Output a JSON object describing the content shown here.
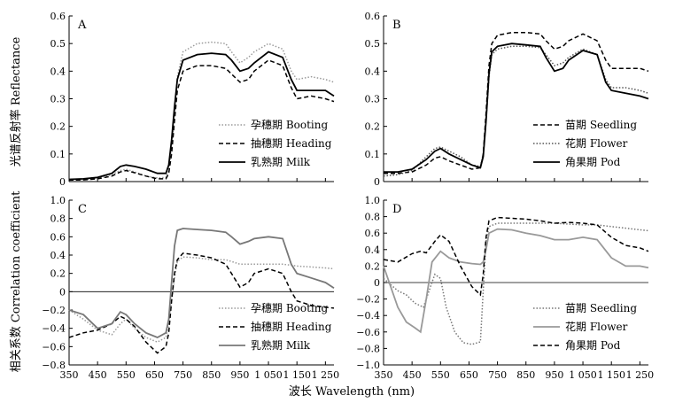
{
  "figure": {
    "ylabel_top": "光谱反射率 Reflectance",
    "ylabel_bottom": "相关系数 Correlation coefficient",
    "xlabel": "波长 Wavelength (nm)"
  },
  "chart_data": [
    {
      "panel": "A",
      "type": "line",
      "xlim": [
        350,
        1280
      ],
      "ylim": [
        0,
        0.6
      ],
      "yticks": [
        0,
        0.1,
        0.2,
        0.3,
        0.4,
        0.5,
        0.6
      ],
      "xticks": [
        350,
        450,
        550,
        650,
        750,
        850,
        950,
        1050,
        1150,
        1250
      ],
      "xticklabels": [
        "",
        "",
        "",
        "",
        "",
        "",
        "",
        "",
        "",
        ""
      ],
      "yticklabels": [
        "0",
        "0.1",
        "0.2",
        "0.3",
        "0.4",
        "0.5",
        "0.6"
      ],
      "show_x_ticklabels": false,
      "legend_position": "lower-right",
      "series": [
        {
          "name": "孕穗期 Booting",
          "style": "dotted",
          "color": "#9a9a9a",
          "x": [
            350,
            400,
            450,
            500,
            530,
            550,
            580,
            620,
            660,
            690,
            700,
            710,
            720,
            730,
            750,
            800,
            850,
            900,
            920,
            950,
            980,
            1000,
            1050,
            1100,
            1130,
            1150,
            1200,
            1250,
            1280
          ],
          "y": [
            0.005,
            0.007,
            0.012,
            0.025,
            0.04,
            0.045,
            0.035,
            0.02,
            0.013,
            0.015,
            0.04,
            0.12,
            0.25,
            0.38,
            0.47,
            0.5,
            0.505,
            0.5,
            0.47,
            0.43,
            0.45,
            0.47,
            0.5,
            0.48,
            0.4,
            0.37,
            0.38,
            0.37,
            0.36
          ]
        },
        {
          "name": "抽穗期 Heading",
          "style": "dashed",
          "color": "#000000",
          "x": [
            350,
            400,
            450,
            500,
            530,
            550,
            580,
            620,
            660,
            690,
            700,
            710,
            720,
            730,
            750,
            800,
            850,
            900,
            920,
            950,
            980,
            1000,
            1050,
            1100,
            1130,
            1150,
            1200,
            1250,
            1280
          ],
          "y": [
            0.005,
            0.006,
            0.01,
            0.02,
            0.035,
            0.04,
            0.032,
            0.02,
            0.01,
            0.01,
            0.03,
            0.1,
            0.22,
            0.33,
            0.4,
            0.42,
            0.42,
            0.41,
            0.39,
            0.36,
            0.37,
            0.4,
            0.44,
            0.42,
            0.34,
            0.3,
            0.31,
            0.3,
            0.29
          ]
        },
        {
          "name": "乳熟期 Milk",
          "style": "solid",
          "color": "#000000",
          "x": [
            350,
            400,
            450,
            500,
            530,
            550,
            580,
            620,
            660,
            690,
            700,
            710,
            720,
            730,
            750,
            800,
            850,
            900,
            920,
            950,
            980,
            1000,
            1050,
            1100,
            1130,
            1150,
            1200,
            1250,
            1280
          ],
          "y": [
            0.008,
            0.01,
            0.015,
            0.03,
            0.055,
            0.06,
            0.055,
            0.045,
            0.03,
            0.03,
            0.06,
            0.15,
            0.27,
            0.37,
            0.44,
            0.46,
            0.465,
            0.46,
            0.44,
            0.4,
            0.41,
            0.43,
            0.47,
            0.45,
            0.37,
            0.33,
            0.33,
            0.33,
            0.31
          ]
        }
      ]
    },
    {
      "panel": "B",
      "type": "line",
      "xlim": [
        350,
        1280
      ],
      "ylim": [
        0,
        0.6
      ],
      "yticks": [
        0,
        0.1,
        0.2,
        0.3,
        0.4,
        0.5,
        0.6
      ],
      "xticks": [
        350,
        450,
        550,
        650,
        750,
        850,
        950,
        1050,
        1150,
        1250
      ],
      "xticklabels": [
        "",
        "",
        "",
        "",
        "",
        "",
        "",
        "",
        "",
        ""
      ],
      "yticklabels": [
        "0",
        "0.1",
        "0.2",
        "0.3",
        "0.4",
        "0.5",
        "0.6"
      ],
      "show_x_ticklabels": false,
      "legend_position": "lower-right",
      "series": [
        {
          "name": "苗期 Seedling",
          "style": "dashed",
          "color": "#000000",
          "x": [
            350,
            400,
            450,
            500,
            530,
            550,
            580,
            620,
            660,
            690,
            700,
            710,
            720,
            730,
            750,
            800,
            850,
            900,
            920,
            950,
            980,
            1000,
            1050,
            1100,
            1130,
            1150,
            1200,
            1250,
            1280
          ],
          "y": [
            0.03,
            0.03,
            0.035,
            0.06,
            0.085,
            0.09,
            0.075,
            0.06,
            0.045,
            0.05,
            0.1,
            0.25,
            0.42,
            0.5,
            0.53,
            0.54,
            0.54,
            0.535,
            0.51,
            0.48,
            0.49,
            0.51,
            0.535,
            0.51,
            0.44,
            0.41,
            0.41,
            0.41,
            0.4
          ]
        },
        {
          "name": "花期 Flower",
          "style": "dotted",
          "color": "#555555",
          "x": [
            350,
            400,
            450,
            500,
            530,
            550,
            580,
            620,
            660,
            690,
            700,
            710,
            720,
            730,
            750,
            800,
            850,
            900,
            920,
            950,
            980,
            1000,
            1050,
            1100,
            1130,
            1150,
            1200,
            1250,
            1280
          ],
          "y": [
            0.02,
            0.025,
            0.04,
            0.09,
            0.12,
            0.125,
            0.11,
            0.09,
            0.06,
            0.055,
            0.1,
            0.22,
            0.38,
            0.46,
            0.48,
            0.49,
            0.49,
            0.485,
            0.46,
            0.42,
            0.43,
            0.45,
            0.48,
            0.46,
            0.37,
            0.34,
            0.34,
            0.33,
            0.32
          ]
        },
        {
          "name": "角果期 Pod",
          "style": "solid",
          "color": "#000000",
          "x": [
            350,
            400,
            450,
            500,
            530,
            550,
            580,
            620,
            660,
            690,
            700,
            710,
            720,
            730,
            750,
            800,
            850,
            900,
            920,
            950,
            980,
            1000,
            1050,
            1100,
            1130,
            1150,
            1200,
            1250,
            1280
          ],
          "y": [
            0.035,
            0.035,
            0.045,
            0.08,
            0.11,
            0.12,
            0.1,
            0.08,
            0.06,
            0.05,
            0.09,
            0.22,
            0.39,
            0.47,
            0.49,
            0.5,
            0.495,
            0.49,
            0.45,
            0.4,
            0.41,
            0.44,
            0.475,
            0.46,
            0.36,
            0.33,
            0.32,
            0.31,
            0.3
          ]
        }
      ]
    },
    {
      "panel": "C",
      "type": "line",
      "xlim": [
        350,
        1280
      ],
      "ylim": [
        -0.8,
        1.0
      ],
      "yticks": [
        -0.8,
        -0.6,
        -0.4,
        -0.2,
        0,
        0.2,
        0.4,
        0.6,
        0.8,
        1.0
      ],
      "xticks": [
        350,
        450,
        550,
        650,
        750,
        850,
        950,
        1050,
        1150,
        1250
      ],
      "xticklabels": [
        "350",
        "450",
        "550",
        "650",
        "750",
        "850",
        "950",
        "1 050",
        "1 150",
        "1 250"
      ],
      "yticklabels": [
        "−0.8",
        "−0.6",
        "−0.4",
        "−0.2",
        "0",
        "0.2",
        "0.4",
        "0.6",
        "0.8",
        "1.0"
      ],
      "show_x_ticklabels": true,
      "legend_position": "lower-right",
      "series": [
        {
          "name": "孕穗期 Booting",
          "style": "dotted",
          "color": "#9a9a9a",
          "x": [
            350,
            400,
            450,
            500,
            530,
            550,
            580,
            620,
            660,
            690,
            700,
            710,
            720,
            730,
            750,
            800,
            850,
            900,
            920,
            950,
            980,
            1000,
            1050,
            1100,
            1130,
            1150,
            1200,
            1250,
            1280
          ],
          "y": [
            -0.2,
            -0.3,
            -0.42,
            -0.47,
            -0.35,
            -0.3,
            -0.4,
            -0.5,
            -0.55,
            -0.5,
            -0.35,
            -0.1,
            0.15,
            0.33,
            0.38,
            0.37,
            0.35,
            0.35,
            0.33,
            0.3,
            0.3,
            0.3,
            0.3,
            0.3,
            0.29,
            0.28,
            0.27,
            0.26,
            0.25
          ]
        },
        {
          "name": "抽穗期 Heading",
          "style": "dashed",
          "color": "#000000",
          "x": [
            350,
            400,
            450,
            500,
            530,
            550,
            580,
            620,
            660,
            690,
            700,
            710,
            720,
            730,
            750,
            800,
            850,
            900,
            920,
            950,
            980,
            1000,
            1050,
            1100,
            1130,
            1150,
            1200,
            1250,
            1280
          ],
          "y": [
            -0.5,
            -0.45,
            -0.42,
            -0.35,
            -0.27,
            -0.3,
            -0.38,
            -0.55,
            -0.67,
            -0.6,
            -0.45,
            -0.1,
            0.2,
            0.35,
            0.42,
            0.4,
            0.37,
            0.3,
            0.2,
            0.05,
            0.1,
            0.2,
            0.25,
            0.2,
            0.0,
            -0.1,
            -0.15,
            -0.17,
            -0.18
          ]
        },
        {
          "name": "乳熟期 Milk",
          "style": "solid",
          "color": "#777777",
          "x": [
            350,
            400,
            450,
            500,
            530,
            550,
            580,
            620,
            660,
            690,
            700,
            710,
            720,
            730,
            750,
            800,
            850,
            900,
            920,
            950,
            980,
            1000,
            1050,
            1100,
            1130,
            1150,
            1200,
            1250,
            1280
          ],
          "y": [
            -0.2,
            -0.25,
            -0.4,
            -0.35,
            -0.22,
            -0.25,
            -0.35,
            -0.45,
            -0.5,
            -0.45,
            -0.3,
            0.1,
            0.5,
            0.67,
            0.69,
            0.68,
            0.67,
            0.65,
            0.6,
            0.52,
            0.55,
            0.58,
            0.6,
            0.58,
            0.3,
            0.2,
            0.15,
            0.1,
            0.04
          ]
        }
      ]
    },
    {
      "panel": "D",
      "type": "line",
      "xlim": [
        350,
        1280
      ],
      "ylim": [
        -1.0,
        1.0
      ],
      "yticks": [
        -1.0,
        -0.8,
        -0.6,
        -0.4,
        -0.2,
        0,
        0.2,
        0.4,
        0.6,
        0.8,
        1.0
      ],
      "xticks": [
        350,
        450,
        550,
        650,
        750,
        850,
        950,
        1050,
        1150,
        1250
      ],
      "xticklabels": [
        "350",
        "450",
        "550",
        "650",
        "750",
        "850",
        "950",
        "1 050",
        "1 150",
        "1 250"
      ],
      "yticklabels": [
        "−1.0",
        "−0.8",
        "−0.6",
        "−0.4",
        "−0.2",
        "0",
        "0.2",
        "0.4",
        "0.6",
        "0.8",
        "1.0"
      ],
      "show_x_ticklabels": true,
      "legend_position": "lower-right",
      "series": [
        {
          "name": "苗期 Seedling",
          "style": "dotted",
          "color": "#777777",
          "x": [
            350,
            400,
            430,
            460,
            490,
            510,
            530,
            550,
            570,
            600,
            630,
            660,
            690,
            700,
            710,
            720,
            750,
            800,
            850,
            900,
            950,
            1000,
            1050,
            1100,
            1150,
            1200,
            1250,
            1280
          ],
          "y": [
            0.05,
            -0.1,
            -0.15,
            -0.25,
            -0.3,
            -0.1,
            0.1,
            0.05,
            -0.3,
            -0.6,
            -0.73,
            -0.75,
            -0.72,
            -0.1,
            0.5,
            0.68,
            0.72,
            0.72,
            0.72,
            0.72,
            0.72,
            0.71,
            0.7,
            0.7,
            0.68,
            0.66,
            0.64,
            0.63
          ]
        },
        {
          "name": "花期 Flower",
          "style": "solid",
          "color": "#999999",
          "x": [
            350,
            400,
            430,
            460,
            480,
            500,
            520,
            550,
            580,
            620,
            660,
            690,
            700,
            710,
            720,
            750,
            800,
            850,
            900,
            950,
            1000,
            1050,
            1100,
            1150,
            1200,
            1250,
            1280
          ],
          "y": [
            0.2,
            -0.3,
            -0.48,
            -0.55,
            -0.6,
            -0.2,
            0.25,
            0.38,
            0.3,
            0.25,
            0.23,
            0.22,
            0.25,
            0.4,
            0.6,
            0.65,
            0.64,
            0.6,
            0.57,
            0.52,
            0.52,
            0.55,
            0.52,
            0.3,
            0.2,
            0.2,
            0.18
          ]
        },
        {
          "name": "角果期 Pod",
          "style": "dashed",
          "color": "#000000",
          "x": [
            350,
            400,
            450,
            480,
            500,
            530,
            550,
            580,
            620,
            660,
            690,
            700,
            710,
            720,
            750,
            800,
            850,
            900,
            950,
            1000,
            1050,
            1100,
            1150,
            1200,
            1250,
            1280
          ],
          "y": [
            0.28,
            0.25,
            0.35,
            0.38,
            0.36,
            0.5,
            0.58,
            0.5,
            0.2,
            -0.05,
            -0.15,
            0.1,
            0.55,
            0.75,
            0.79,
            0.78,
            0.77,
            0.75,
            0.72,
            0.73,
            0.72,
            0.7,
            0.55,
            0.45,
            0.42,
            0.38
          ]
        }
      ]
    }
  ]
}
